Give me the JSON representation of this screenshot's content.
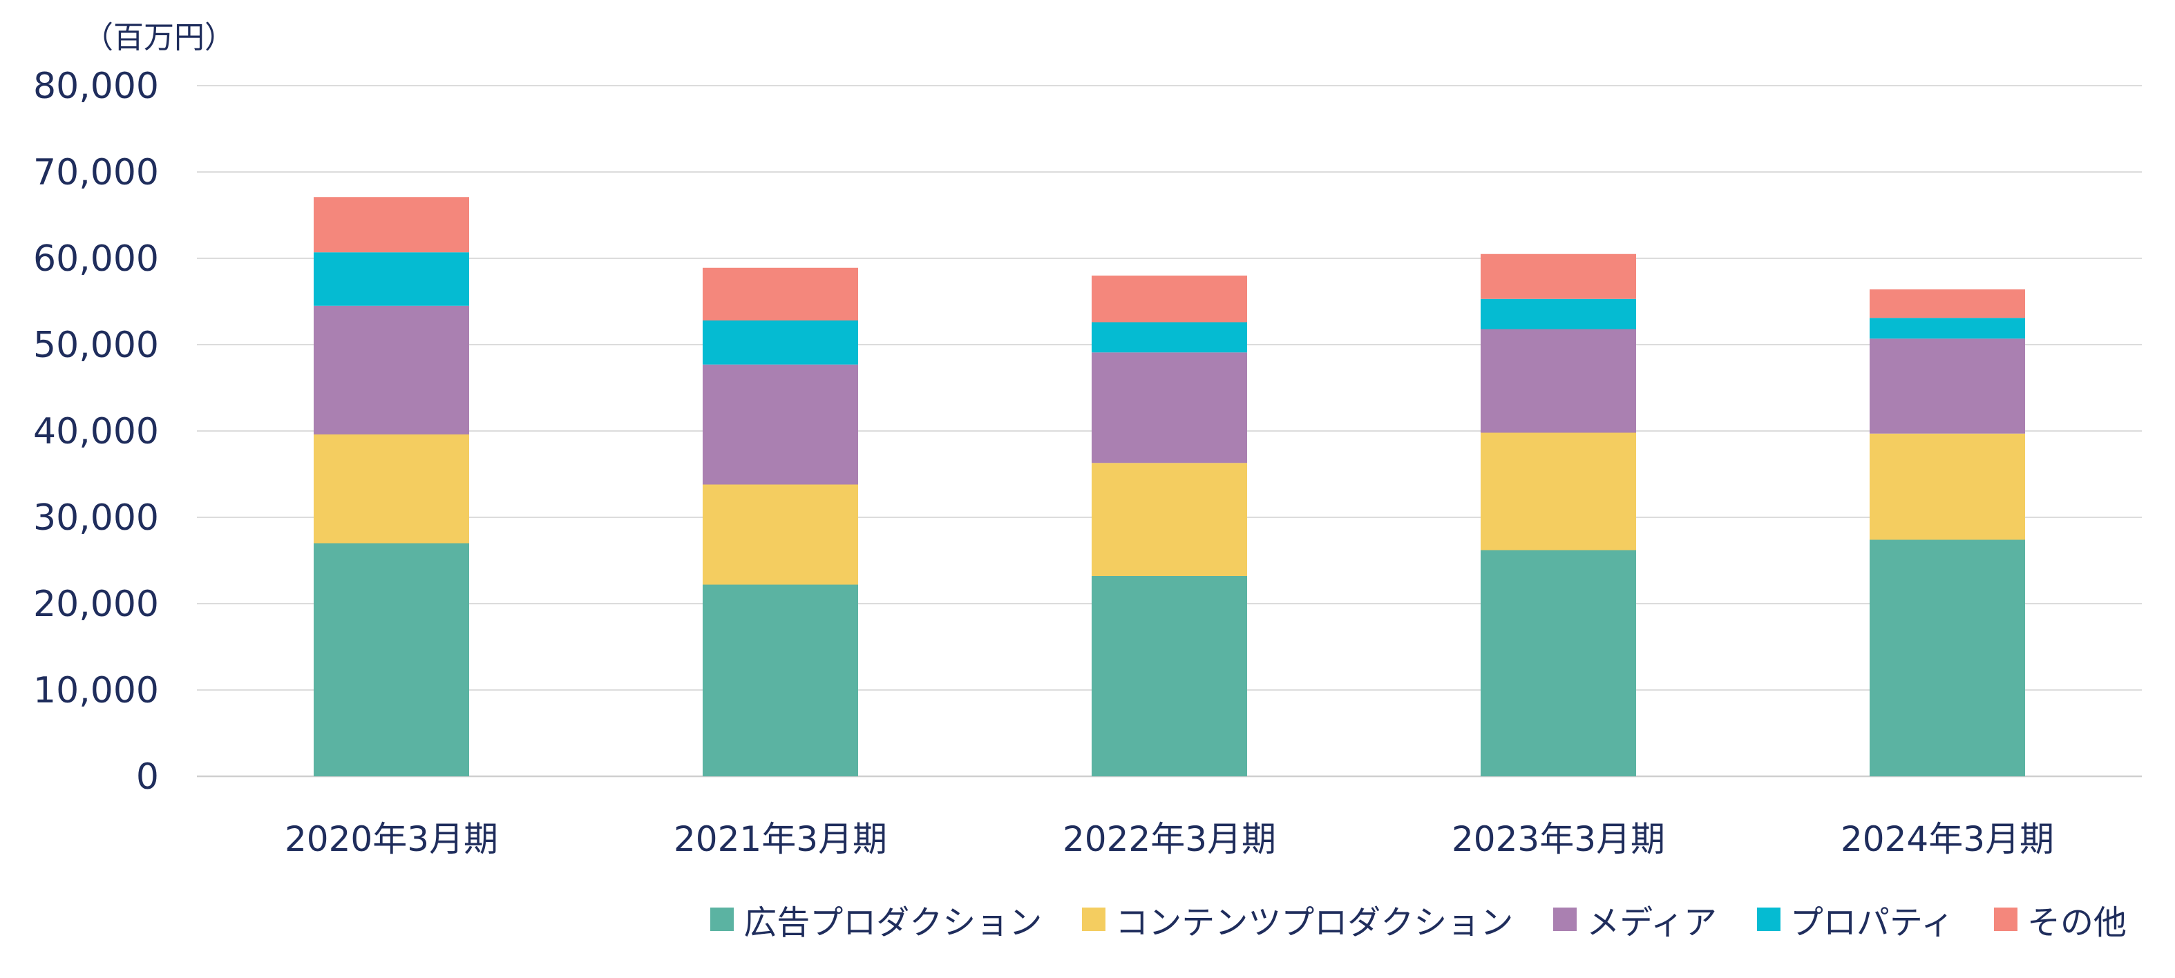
{
  "chart_data": {
    "type": "bar",
    "stacked": true,
    "unit_label": "（百万円）",
    "categories": [
      "2020年3月期",
      "2021年3月期",
      "2022年3月期",
      "2023年3月期",
      "2024年3月期"
    ],
    "series": [
      {
        "name": "広告プロダクション",
        "color": "#5bb3a2",
        "values": [
          27000,
          22200,
          23200,
          26200,
          27400
        ]
      },
      {
        "name": "コンテンツプロダクション",
        "color": "#f4cd60",
        "values": [
          12600,
          11600,
          13100,
          13600,
          12300
        ]
      },
      {
        "name": "メディア",
        "color": "#aa80b1",
        "values": [
          14900,
          13900,
          12800,
          12000,
          11000
        ]
      },
      {
        "name": "プロパティ",
        "color": "#05bbd2",
        "values": [
          6200,
          5100,
          3500,
          3500,
          2400
        ]
      },
      {
        "name": "その他",
        "color": "#f4877c",
        "values": [
          6400,
          6100,
          5400,
          5200,
          3300
        ]
      }
    ],
    "yticks": [
      "0",
      "10,000",
      "20,000",
      "30,000",
      "40,000",
      "50,000",
      "60,000",
      "70,000",
      "80,000"
    ],
    "ylim": [
      0,
      80000
    ],
    "grid": true,
    "legend_position": "bottom-right"
  }
}
